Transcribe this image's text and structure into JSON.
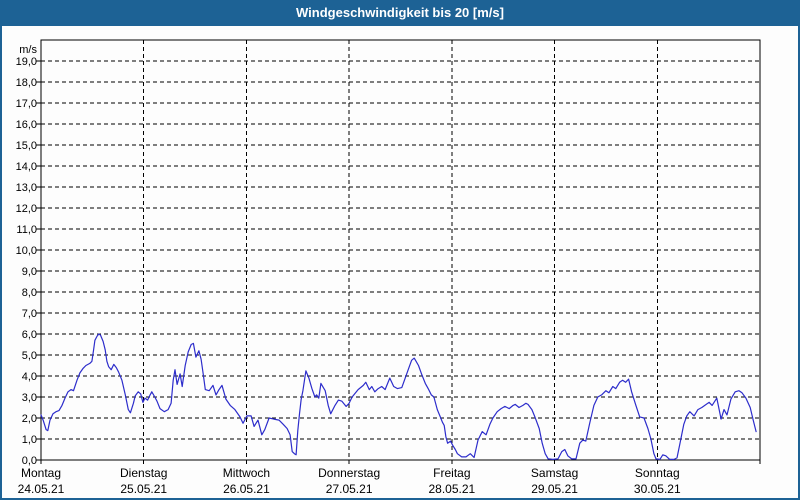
{
  "window": {
    "title": "Windgeschwindigkeit bis 20 [m/s]"
  },
  "colors": {
    "titlebar_bg": "#1d6295",
    "titlebar_text": "#ffffff",
    "window_border": "#1d6295",
    "content_bg": "#fdfdfd",
    "line": "#2d2dcb",
    "grid": "#000000",
    "label_text": "#000000"
  },
  "chart_data": {
    "type": "line",
    "title": "Windgeschwindigkeit bis 20 [m/s]",
    "ylabel": "m/s",
    "ylim": [
      0,
      20
    ],
    "ytick_step": 1.0,
    "ytick_labels": [
      "0,0",
      "1,0",
      "2,0",
      "3,0",
      "4,0",
      "5,0",
      "6,0",
      "7,0",
      "8,0",
      "9,0",
      "10,0",
      "11,0",
      "12,0",
      "13,0",
      "14,0",
      "15,0",
      "16,0",
      "17,0",
      "18,0",
      "19,0"
    ],
    "grid": "dashed",
    "legend": "none",
    "x_axis": {
      "range_hours": [
        0,
        168
      ],
      "days": [
        {
          "label": "Montag",
          "date": "24.05.21"
        },
        {
          "label": "Dienstag",
          "date": "25.05.21"
        },
        {
          "label": "Mittwoch",
          "date": "26.05.21"
        },
        {
          "label": "Donnerstag",
          "date": "27.05.21"
        },
        {
          "label": "Freitag",
          "date": "28.05.21"
        },
        {
          "label": "Samstag",
          "date": "29.05.21"
        },
        {
          "label": "Sonntag",
          "date": "30.05.21"
        }
      ]
    },
    "series": [
      {
        "name": "Windgeschwindigkeit",
        "unit": "m/s",
        "x_hours": [
          0,
          0.5,
          1.2,
          1.6,
          2.1,
          2.8,
          3.5,
          4.2,
          4.9,
          5.6,
          6.3,
          7.0,
          7.6,
          8.4,
          9.1,
          9.8,
          10.5,
          11.4,
          11.9,
          12.3,
          12.6,
          13.1,
          13.5,
          13.9,
          14.5,
          15.0,
          15.4,
          15.8,
          16.4,
          17.0,
          17.6,
          18.1,
          18.9,
          19.7,
          20.4,
          20.9,
          21.6,
          22.0,
          22.7,
          23.3,
          23.8,
          24.3,
          24.9,
          25.5,
          25.9,
          26.6,
          27.1,
          27.8,
          28.8,
          29.7,
          30.4,
          30.9,
          31.3,
          31.8,
          32.5,
          33.0,
          33.7,
          34.4,
          35.1,
          35.6,
          36.2,
          36.9,
          37.4,
          37.9,
          38.4,
          39.3,
          40.2,
          40.9,
          41.6,
          42.3,
          43.2,
          44.2,
          45.3,
          46.5,
          47.2,
          48.1,
          49.1,
          49.8,
          50.7,
          51.6,
          52.3,
          53.3,
          54.4,
          55.6,
          56.6,
          57.5,
          58.2,
          58.7,
          59.2,
          59.6,
          60.0,
          60.4,
          60.8,
          61.2,
          61.9,
          62.6,
          63.3,
          64.0,
          64.4,
          64.9,
          65.4,
          66.4,
          67.1,
          67.7,
          68.7,
          69.5,
          70.3,
          71.3,
          72.0,
          72.7,
          74.1,
          75.3,
          75.9,
          76.7,
          77.3,
          78.0,
          78.8,
          79.6,
          80.4,
          81.5,
          82.4,
          83.3,
          84.3,
          85.8,
          86.6,
          87.2,
          88.2,
          89.0,
          89.8,
          90.6,
          91.2,
          91.8,
          92.6,
          93.3,
          93.8,
          94.2,
          94.6,
          95.0,
          95.7,
          96.2,
          96.8,
          97.3,
          98.3,
          99.3,
          100.3,
          101.2,
          102.1,
          103.1,
          104.0,
          104.9,
          105.6,
          106.6,
          107.5,
          108.4,
          109.4,
          110.3,
          110.8,
          111.7,
          112.6,
          113.3,
          113.8,
          114.7,
          115.4,
          116.4,
          117.1,
          117.8,
          118.5,
          119.6,
          120.8,
          121.7,
          122.4,
          123.1,
          124.0,
          125.0,
          125.9,
          126.6,
          127.3,
          128.2,
          129.2,
          130.1,
          131.0,
          132.0,
          132.7,
          133.6,
          134.3,
          135.2,
          135.9,
          136.6,
          137.3,
          138.0,
          139.0,
          139.9,
          140.9,
          141.8,
          142.5,
          143.2,
          143.7,
          144.6,
          145.3,
          146.0,
          146.9,
          147.9,
          148.6,
          149.3,
          150.2,
          150.9,
          151.6,
          152.6,
          153.5,
          154.4,
          155.1,
          156.1,
          156.8,
          157.9,
          158.9,
          159.6,
          160.3,
          161.2,
          162.2,
          163.1,
          163.8,
          164.7,
          165.7,
          166.4,
          167.1
        ],
        "values": [
          2.15,
          1.9,
          1.45,
          1.4,
          1.9,
          2.2,
          2.3,
          2.35,
          2.6,
          2.95,
          3.25,
          3.35,
          3.3,
          3.8,
          4.15,
          4.35,
          4.5,
          4.6,
          4.7,
          5.25,
          5.7,
          5.9,
          6.0,
          5.95,
          5.65,
          5.25,
          4.7,
          4.45,
          4.3,
          4.55,
          4.4,
          4.2,
          3.8,
          3.1,
          2.4,
          2.25,
          2.7,
          3.05,
          3.25,
          3.15,
          2.75,
          2.95,
          2.85,
          3.1,
          3.25,
          3.0,
          2.8,
          2.45,
          2.3,
          2.4,
          2.7,
          3.8,
          4.3,
          3.6,
          4.1,
          3.5,
          4.5,
          5.15,
          5.5,
          5.55,
          4.9,
          5.2,
          4.8,
          4.1,
          3.35,
          3.3,
          3.55,
          3.1,
          3.35,
          3.55,
          2.9,
          2.6,
          2.4,
          2.05,
          1.75,
          2.1,
          2.1,
          1.6,
          1.9,
          1.2,
          1.45,
          2.0,
          1.95,
          1.9,
          1.7,
          1.5,
          1.2,
          0.4,
          0.3,
          0.25,
          1.4,
          2.2,
          2.9,
          3.3,
          4.25,
          3.9,
          3.4,
          3.0,
          3.1,
          2.95,
          3.65,
          3.3,
          2.6,
          2.2,
          2.6,
          2.85,
          2.8,
          2.55,
          2.7,
          3.0,
          3.35,
          3.55,
          3.7,
          3.35,
          3.5,
          3.25,
          3.4,
          3.5,
          3.35,
          3.9,
          3.5,
          3.4,
          3.45,
          4.3,
          4.75,
          4.85,
          4.5,
          4.05,
          3.65,
          3.35,
          3.1,
          3.0,
          2.4,
          2.05,
          1.8,
          1.65,
          1.1,
          0.8,
          0.9,
          0.7,
          0.5,
          0.3,
          0.15,
          0.15,
          0.3,
          0.12,
          0.95,
          1.35,
          1.2,
          1.7,
          2.0,
          2.3,
          2.45,
          2.55,
          2.45,
          2.6,
          2.65,
          2.5,
          2.6,
          2.7,
          2.65,
          2.4,
          2.05,
          1.5,
          0.8,
          0.3,
          0.05,
          0.03,
          0.05,
          0.4,
          0.5,
          0.2,
          0.05,
          0.05,
          0.8,
          0.95,
          0.9,
          1.75,
          2.6,
          3.0,
          3.1,
          3.3,
          3.2,
          3.5,
          3.4,
          3.7,
          3.8,
          3.7,
          3.85,
          3.25,
          2.6,
          2.05,
          2.0,
          1.5,
          1.0,
          0.3,
          0.05,
          0.03,
          0.25,
          0.2,
          0.03,
          0.03,
          0.1,
          0.8,
          1.7,
          2.1,
          2.3,
          2.1,
          2.4,
          2.5,
          2.6,
          2.75,
          2.6,
          2.95,
          1.95,
          2.4,
          2.15,
          2.9,
          3.25,
          3.3,
          3.2,
          2.95,
          2.5,
          1.9,
          1.35
        ]
      }
    ]
  }
}
